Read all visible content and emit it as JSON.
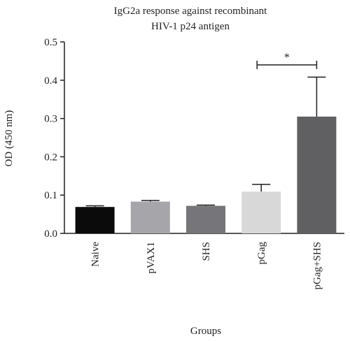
{
  "chart_data": {
    "type": "bar",
    "title_lines": [
      "IgG2a response against recombinant",
      "HIV-1 p24 antigen"
    ],
    "xlabel": "Groups",
    "ylabel": "OD (450 nm)",
    "ylim": [
      0,
      0.5
    ],
    "yticks": [
      "0.0",
      "0.1",
      "0.2",
      "0.3",
      "0.4",
      "0.5"
    ],
    "categories": [
      "Naive",
      "pVAX1",
      "SHS",
      "pGag",
      "pGag+SHS"
    ],
    "values": [
      0.069,
      0.083,
      0.072,
      0.109,
      0.305
    ],
    "errors": [
      0.003,
      0.003,
      0.002,
      0.019,
      0.103
    ],
    "bar_colors": [
      "#0b0b0b",
      "#a6a5aa",
      "#76767a",
      "#d8d8d8",
      "#606062"
    ],
    "significance": {
      "label": "*",
      "from_category": 3,
      "to_category": 4,
      "y": 0.44
    },
    "grid": false,
    "legend": "none"
  }
}
